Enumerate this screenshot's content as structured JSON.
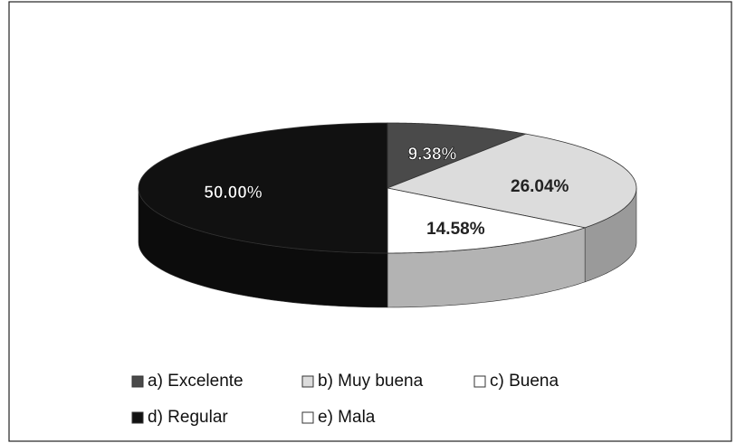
{
  "chart_data": {
    "type": "pie",
    "categories": [
      "a) Excelente",
      "b) Muy buena",
      "c) Buena",
      "d) Regular",
      "e) Mala"
    ],
    "values": [
      9.38,
      26.04,
      14.58,
      50.0,
      0
    ],
    "value_labels": [
      "9.38%",
      "26.04%",
      "14.58%",
      "50.00%",
      null
    ],
    "colors": [
      "#4a4a4a",
      "#dcdcdc",
      "#ffffff",
      "#111111",
      "#ffffff"
    ],
    "legend": "bottom"
  }
}
